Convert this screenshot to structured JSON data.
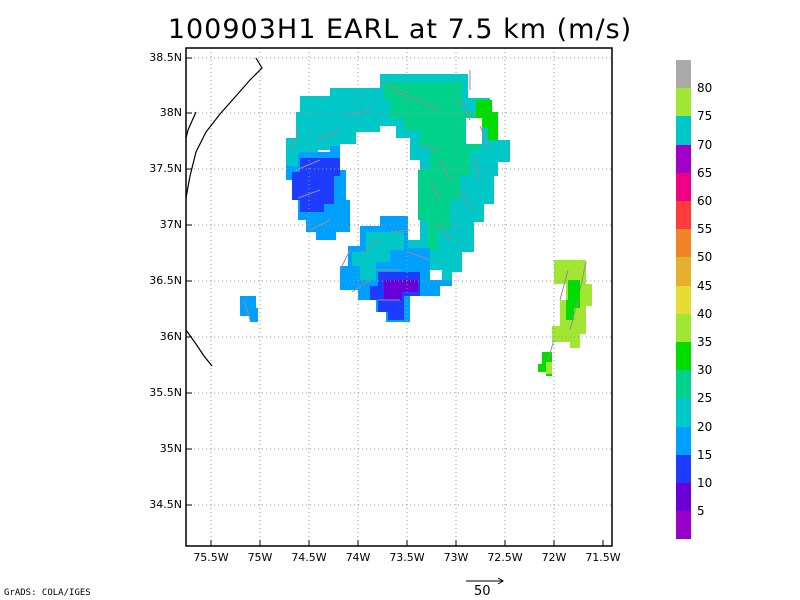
{
  "title": "100903H1 EARL at 7.5 km (m/s)",
  "map": {
    "lat_range": [
      34.15,
      38.55
    ],
    "lon_range": [
      -75.75,
      -71.5
    ],
    "y_ticks": [
      "38.5N",
      "38N",
      "37.5N",
      "37N",
      "36.5N",
      "36N",
      "35.5N",
      "35N",
      "34.5N"
    ],
    "x_ticks": [
      "75.5W",
      "75W",
      "74.5W",
      "74W",
      "73.5W",
      "73W",
      "72.5W",
      "72W",
      "71.5W"
    ],
    "grid": "dotted"
  },
  "colorbar": {
    "colors": [
      "#9900cc",
      "#6a00d8",
      "#1e3cff",
      "#00a0ff",
      "#00c8c8",
      "#00d28c",
      "#00dc00",
      "#a0e632",
      "#e6dc32",
      "#e6af2d",
      "#f08228",
      "#fa3c3c",
      "#f00082",
      "#a000c8",
      "#00c8c8",
      "#a0e632",
      "#aaaaaa"
    ],
    "labels": [
      "5",
      "10",
      "15",
      "20",
      "25",
      "30",
      "35",
      "40",
      "45",
      "50",
      "55",
      "60",
      "65",
      "70",
      "75",
      "80"
    ]
  },
  "wind_scale": {
    "label": "50"
  },
  "credit": "GrADS: COLA/IGES"
}
